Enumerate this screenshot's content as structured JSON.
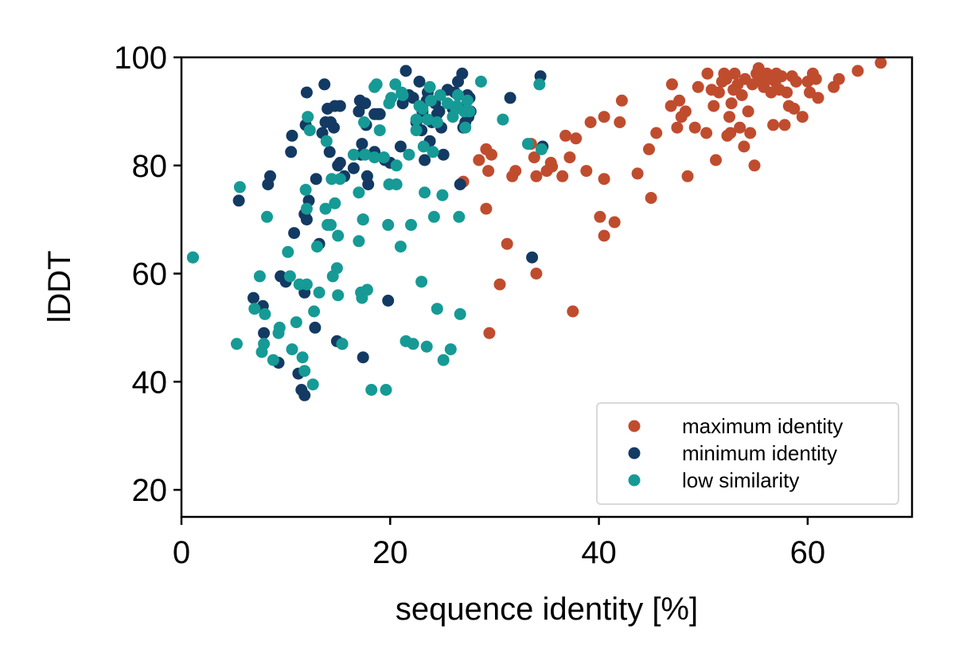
{
  "chart_data": {
    "type": "scatter",
    "title": "",
    "xlabel": "sequence identity [%]",
    "ylabel": "lDDT",
    "xlim": [
      0,
      70
    ],
    "ylim": [
      15,
      100
    ],
    "xticks": [
      "0",
      "20",
      "40",
      "60"
    ],
    "yticks": [
      "20",
      "40",
      "60",
      "80",
      "100"
    ],
    "grid": false,
    "legend_position": "lower-right",
    "series": [
      {
        "name": "maximum identity",
        "color": "#c04c2e",
        "points": [
          [
            27,
            77
          ],
          [
            28.5,
            81
          ],
          [
            29.2,
            83
          ],
          [
            29.7,
            82
          ],
          [
            29.4,
            79
          ],
          [
            29.2,
            72
          ],
          [
            29.5,
            49
          ],
          [
            30.5,
            58
          ],
          [
            31.2,
            65.5
          ],
          [
            31.7,
            78
          ],
          [
            32,
            79
          ],
          [
            33.5,
            84
          ],
          [
            33.8,
            81.5
          ],
          [
            34,
            78
          ],
          [
            34,
            60
          ],
          [
            35,
            79
          ],
          [
            35.4,
            80.5
          ],
          [
            35.5,
            79.8
          ],
          [
            36.5,
            78
          ],
          [
            36.8,
            85.5
          ],
          [
            37.2,
            81.5
          ],
          [
            37.5,
            53
          ],
          [
            37.8,
            85
          ],
          [
            38.8,
            79
          ],
          [
            39.2,
            88
          ],
          [
            40.1,
            70.5
          ],
          [
            40.5,
            89
          ],
          [
            40.5,
            77.5
          ],
          [
            40.5,
            67
          ],
          [
            41.5,
            69.5
          ],
          [
            42,
            88
          ],
          [
            42.2,
            92
          ],
          [
            43.7,
            78.5
          ],
          [
            44.8,
            83
          ],
          [
            45,
            74
          ],
          [
            45.5,
            86
          ],
          [
            46.9,
            91
          ],
          [
            47,
            95
          ],
          [
            47.5,
            87
          ],
          [
            47.7,
            92
          ],
          [
            47.9,
            89
          ],
          [
            48.3,
            90
          ],
          [
            48.5,
            78
          ],
          [
            49.2,
            87
          ],
          [
            49.5,
            94.5
          ],
          [
            50.3,
            86
          ],
          [
            50.4,
            97
          ],
          [
            50.8,
            94
          ],
          [
            51,
            91
          ],
          [
            51.2,
            81
          ],
          [
            51.5,
            93.5
          ],
          [
            51.8,
            95.5
          ],
          [
            52,
            97
          ],
          [
            52.2,
            96
          ],
          [
            52.3,
            85.5
          ],
          [
            52.5,
            89
          ],
          [
            52.6,
            86
          ],
          [
            52.7,
            91.5
          ],
          [
            52.9,
            94
          ],
          [
            53,
            97
          ],
          [
            53.3,
            95
          ],
          [
            53.5,
            87
          ],
          [
            53.7,
            93
          ],
          [
            53.9,
            83.5
          ],
          [
            54,
            96
          ],
          [
            54.3,
            90
          ],
          [
            54.5,
            86
          ],
          [
            54.7,
            95
          ],
          [
            54.9,
            80
          ],
          [
            55.1,
            97
          ],
          [
            55.3,
            98
          ],
          [
            55.5,
            95.5
          ],
          [
            55.8,
            94.5
          ],
          [
            56.1,
            97
          ],
          [
            56.3,
            96
          ],
          [
            56.5,
            93.5
          ],
          [
            56.7,
            87.5
          ],
          [
            56.9,
            95.5
          ],
          [
            57,
            97
          ],
          [
            57.3,
            94
          ],
          [
            57.5,
            96.5
          ],
          [
            57.8,
            87.5
          ],
          [
            58,
            93.5
          ],
          [
            58.2,
            91
          ],
          [
            58.5,
            96.5
          ],
          [
            58.7,
            90.5
          ],
          [
            58.9,
            95.5
          ],
          [
            59.5,
            89
          ],
          [
            60,
            95.5
          ],
          [
            60.2,
            93.5
          ],
          [
            60.5,
            97
          ],
          [
            60.8,
            96
          ],
          [
            61,
            92.5
          ],
          [
            62.5,
            94.5
          ],
          [
            63,
            96
          ],
          [
            64.8,
            97.5
          ],
          [
            67,
            99
          ]
        ]
      },
      {
        "name": "minimum identity",
        "color": "#133a63",
        "points": [
          [
            1.1,
            63
          ],
          [
            5.5,
            73.5
          ],
          [
            6.9,
            55.5
          ],
          [
            7.8,
            54
          ],
          [
            7.9,
            49
          ],
          [
            8.3,
            76.5
          ],
          [
            8.5,
            78
          ],
          [
            9.3,
            43.5
          ],
          [
            9.5,
            59.5
          ],
          [
            10,
            58.5
          ],
          [
            10.5,
            82.5
          ],
          [
            10.6,
            85.5
          ],
          [
            10.8,
            67.5
          ],
          [
            11.2,
            41.5
          ],
          [
            11.5,
            38.5
          ],
          [
            11.8,
            37.5
          ],
          [
            11.8,
            56.5
          ],
          [
            11.8,
            71
          ],
          [
            11.9,
            87.5
          ],
          [
            12,
            93.5
          ],
          [
            12,
            70
          ],
          [
            12.2,
            73.5
          ],
          [
            12.8,
            50
          ],
          [
            12.9,
            77.5
          ],
          [
            13.2,
            65.5
          ],
          [
            13.5,
            86
          ],
          [
            13.7,
            95
          ],
          [
            13.8,
            88
          ],
          [
            14,
            90.5
          ],
          [
            14.2,
            82.5
          ],
          [
            14.3,
            88
          ],
          [
            14.6,
            87
          ],
          [
            14.7,
            91
          ],
          [
            14.9,
            47.5
          ],
          [
            15,
            80
          ],
          [
            15.2,
            91
          ],
          [
            15.2,
            80.5
          ],
          [
            15.4,
            47
          ],
          [
            15.6,
            78
          ],
          [
            16.5,
            79.5
          ],
          [
            17,
            90
          ],
          [
            17.1,
            92
          ],
          [
            17.2,
            82
          ],
          [
            17.3,
            84
          ],
          [
            17.4,
            70
          ],
          [
            17.4,
            44.5
          ],
          [
            17.6,
            91.5
          ],
          [
            17.7,
            87.5
          ],
          [
            17.8,
            78
          ],
          [
            17.9,
            76.5
          ],
          [
            18.5,
            89.5
          ],
          [
            18.5,
            82.5
          ],
          [
            18.8,
            89.5
          ],
          [
            19,
            89.5
          ],
          [
            19.5,
            81
          ],
          [
            19.8,
            55
          ],
          [
            20,
            80.5
          ],
          [
            21,
            83.5
          ],
          [
            21.2,
            91.5
          ],
          [
            21.5,
            97.5
          ],
          [
            21.8,
            93
          ],
          [
            22.2,
            92.5
          ],
          [
            22.5,
            88
          ],
          [
            22.8,
            95.5
          ],
          [
            23,
            86.5
          ],
          [
            23.1,
            90
          ],
          [
            23.3,
            81
          ],
          [
            23.5,
            92
          ],
          [
            23.6,
            93.5
          ],
          [
            23.8,
            84.5
          ],
          [
            24,
            88
          ],
          [
            24.3,
            91.5
          ],
          [
            24.5,
            89.5
          ],
          [
            24.7,
            90
          ],
          [
            24.9,
            87
          ],
          [
            25.1,
            82
          ],
          [
            25.5,
            94
          ],
          [
            26,
            90.5
          ],
          [
            26.2,
            93.5
          ],
          [
            26.5,
            95.5
          ],
          [
            26.7,
            76.5
          ],
          [
            26.9,
            97
          ],
          [
            27,
            87
          ],
          [
            27.1,
            90.5
          ],
          [
            27.2,
            88
          ],
          [
            27.4,
            93
          ],
          [
            27.5,
            89
          ],
          [
            27.6,
            92.5
          ],
          [
            27.7,
            90
          ],
          [
            31.5,
            92.5
          ],
          [
            33.6,
            63
          ],
          [
            34.4,
            96.5
          ],
          [
            34.6,
            83.5
          ]
        ]
      },
      {
        "name": "low similarity",
        "color": "#169a95",
        "points": [
          [
            1.1,
            63
          ],
          [
            5.3,
            47
          ],
          [
            5.6,
            76
          ],
          [
            7,
            53.5
          ],
          [
            7.5,
            59.5
          ],
          [
            7.7,
            45.5
          ],
          [
            7.9,
            47
          ],
          [
            8,
            52.5
          ],
          [
            8.2,
            70.5
          ],
          [
            8.8,
            44
          ],
          [
            9.3,
            49
          ],
          [
            9.4,
            50
          ],
          [
            10.2,
            64
          ],
          [
            10.4,
            59.5
          ],
          [
            10.6,
            46
          ],
          [
            11,
            51
          ],
          [
            11.3,
            58
          ],
          [
            11.6,
            44.5
          ],
          [
            11.8,
            42
          ],
          [
            11.9,
            75.5
          ],
          [
            12,
            58
          ],
          [
            12,
            72
          ],
          [
            12.1,
            89
          ],
          [
            12.3,
            86.5
          ],
          [
            12.6,
            39.5
          ],
          [
            12.7,
            53
          ],
          [
            13,
            65
          ],
          [
            13.2,
            56.5
          ],
          [
            13.8,
            72
          ],
          [
            13.9,
            84.5
          ],
          [
            14,
            69
          ],
          [
            14.3,
            69
          ],
          [
            14.4,
            77.5
          ],
          [
            14.5,
            59.5
          ],
          [
            14.7,
            73
          ],
          [
            14.9,
            61
          ],
          [
            15,
            67
          ],
          [
            15,
            56
          ],
          [
            15.2,
            77.5
          ],
          [
            15.4,
            47
          ],
          [
            16.5,
            82
          ],
          [
            17,
            66
          ],
          [
            17,
            75
          ],
          [
            17.2,
            56.5
          ],
          [
            17.3,
            55.5
          ],
          [
            17.4,
            70
          ],
          [
            17.5,
            88
          ],
          [
            17.6,
            82
          ],
          [
            17.8,
            57
          ],
          [
            18.2,
            38.5
          ],
          [
            18.5,
            81.5
          ],
          [
            18.5,
            94.5
          ],
          [
            18.7,
            95
          ],
          [
            19,
            86.5
          ],
          [
            19.4,
            81.5
          ],
          [
            19.6,
            38.5
          ],
          [
            19.8,
            69
          ],
          [
            19.9,
            91.5
          ],
          [
            19.9,
            76.5
          ],
          [
            20.1,
            92.5
          ],
          [
            20.5,
            95
          ],
          [
            20.6,
            76.5
          ],
          [
            20.6,
            80
          ],
          [
            21,
            65
          ],
          [
            21.1,
            93.5
          ],
          [
            21.2,
            93
          ],
          [
            21.5,
            47.5
          ],
          [
            21.8,
            82
          ],
          [
            22,
            69
          ],
          [
            22.2,
            47
          ],
          [
            22.5,
            86.5
          ],
          [
            22.5,
            88.5
          ],
          [
            22.8,
            91
          ],
          [
            23,
            58.5
          ],
          [
            23.1,
            90.5
          ],
          [
            23.2,
            83.5
          ],
          [
            23.3,
            75
          ],
          [
            23.5,
            46.5
          ],
          [
            23.6,
            88.5
          ],
          [
            23.8,
            94.5
          ],
          [
            23.9,
            92
          ],
          [
            24.1,
            82.5
          ],
          [
            24.2,
            70.5
          ],
          [
            24.5,
            88
          ],
          [
            24.5,
            53.5
          ],
          [
            24.8,
            93
          ],
          [
            25,
            74.5
          ],
          [
            25.1,
            44
          ],
          [
            25.5,
            91.5
          ],
          [
            25.8,
            46
          ],
          [
            26,
            89
          ],
          [
            26.3,
            90.5
          ],
          [
            26.4,
            91
          ],
          [
            26.5,
            93
          ],
          [
            26.6,
            70.5
          ],
          [
            26.7,
            52.5
          ],
          [
            27.1,
            90
          ],
          [
            27.2,
            87
          ],
          [
            27.4,
            92
          ],
          [
            27.6,
            90
          ],
          [
            28.7,
            95.5
          ],
          [
            30.8,
            88.5
          ],
          [
            33.2,
            84
          ],
          [
            34.3,
            95
          ],
          [
            34.5,
            83
          ]
        ]
      }
    ]
  }
}
